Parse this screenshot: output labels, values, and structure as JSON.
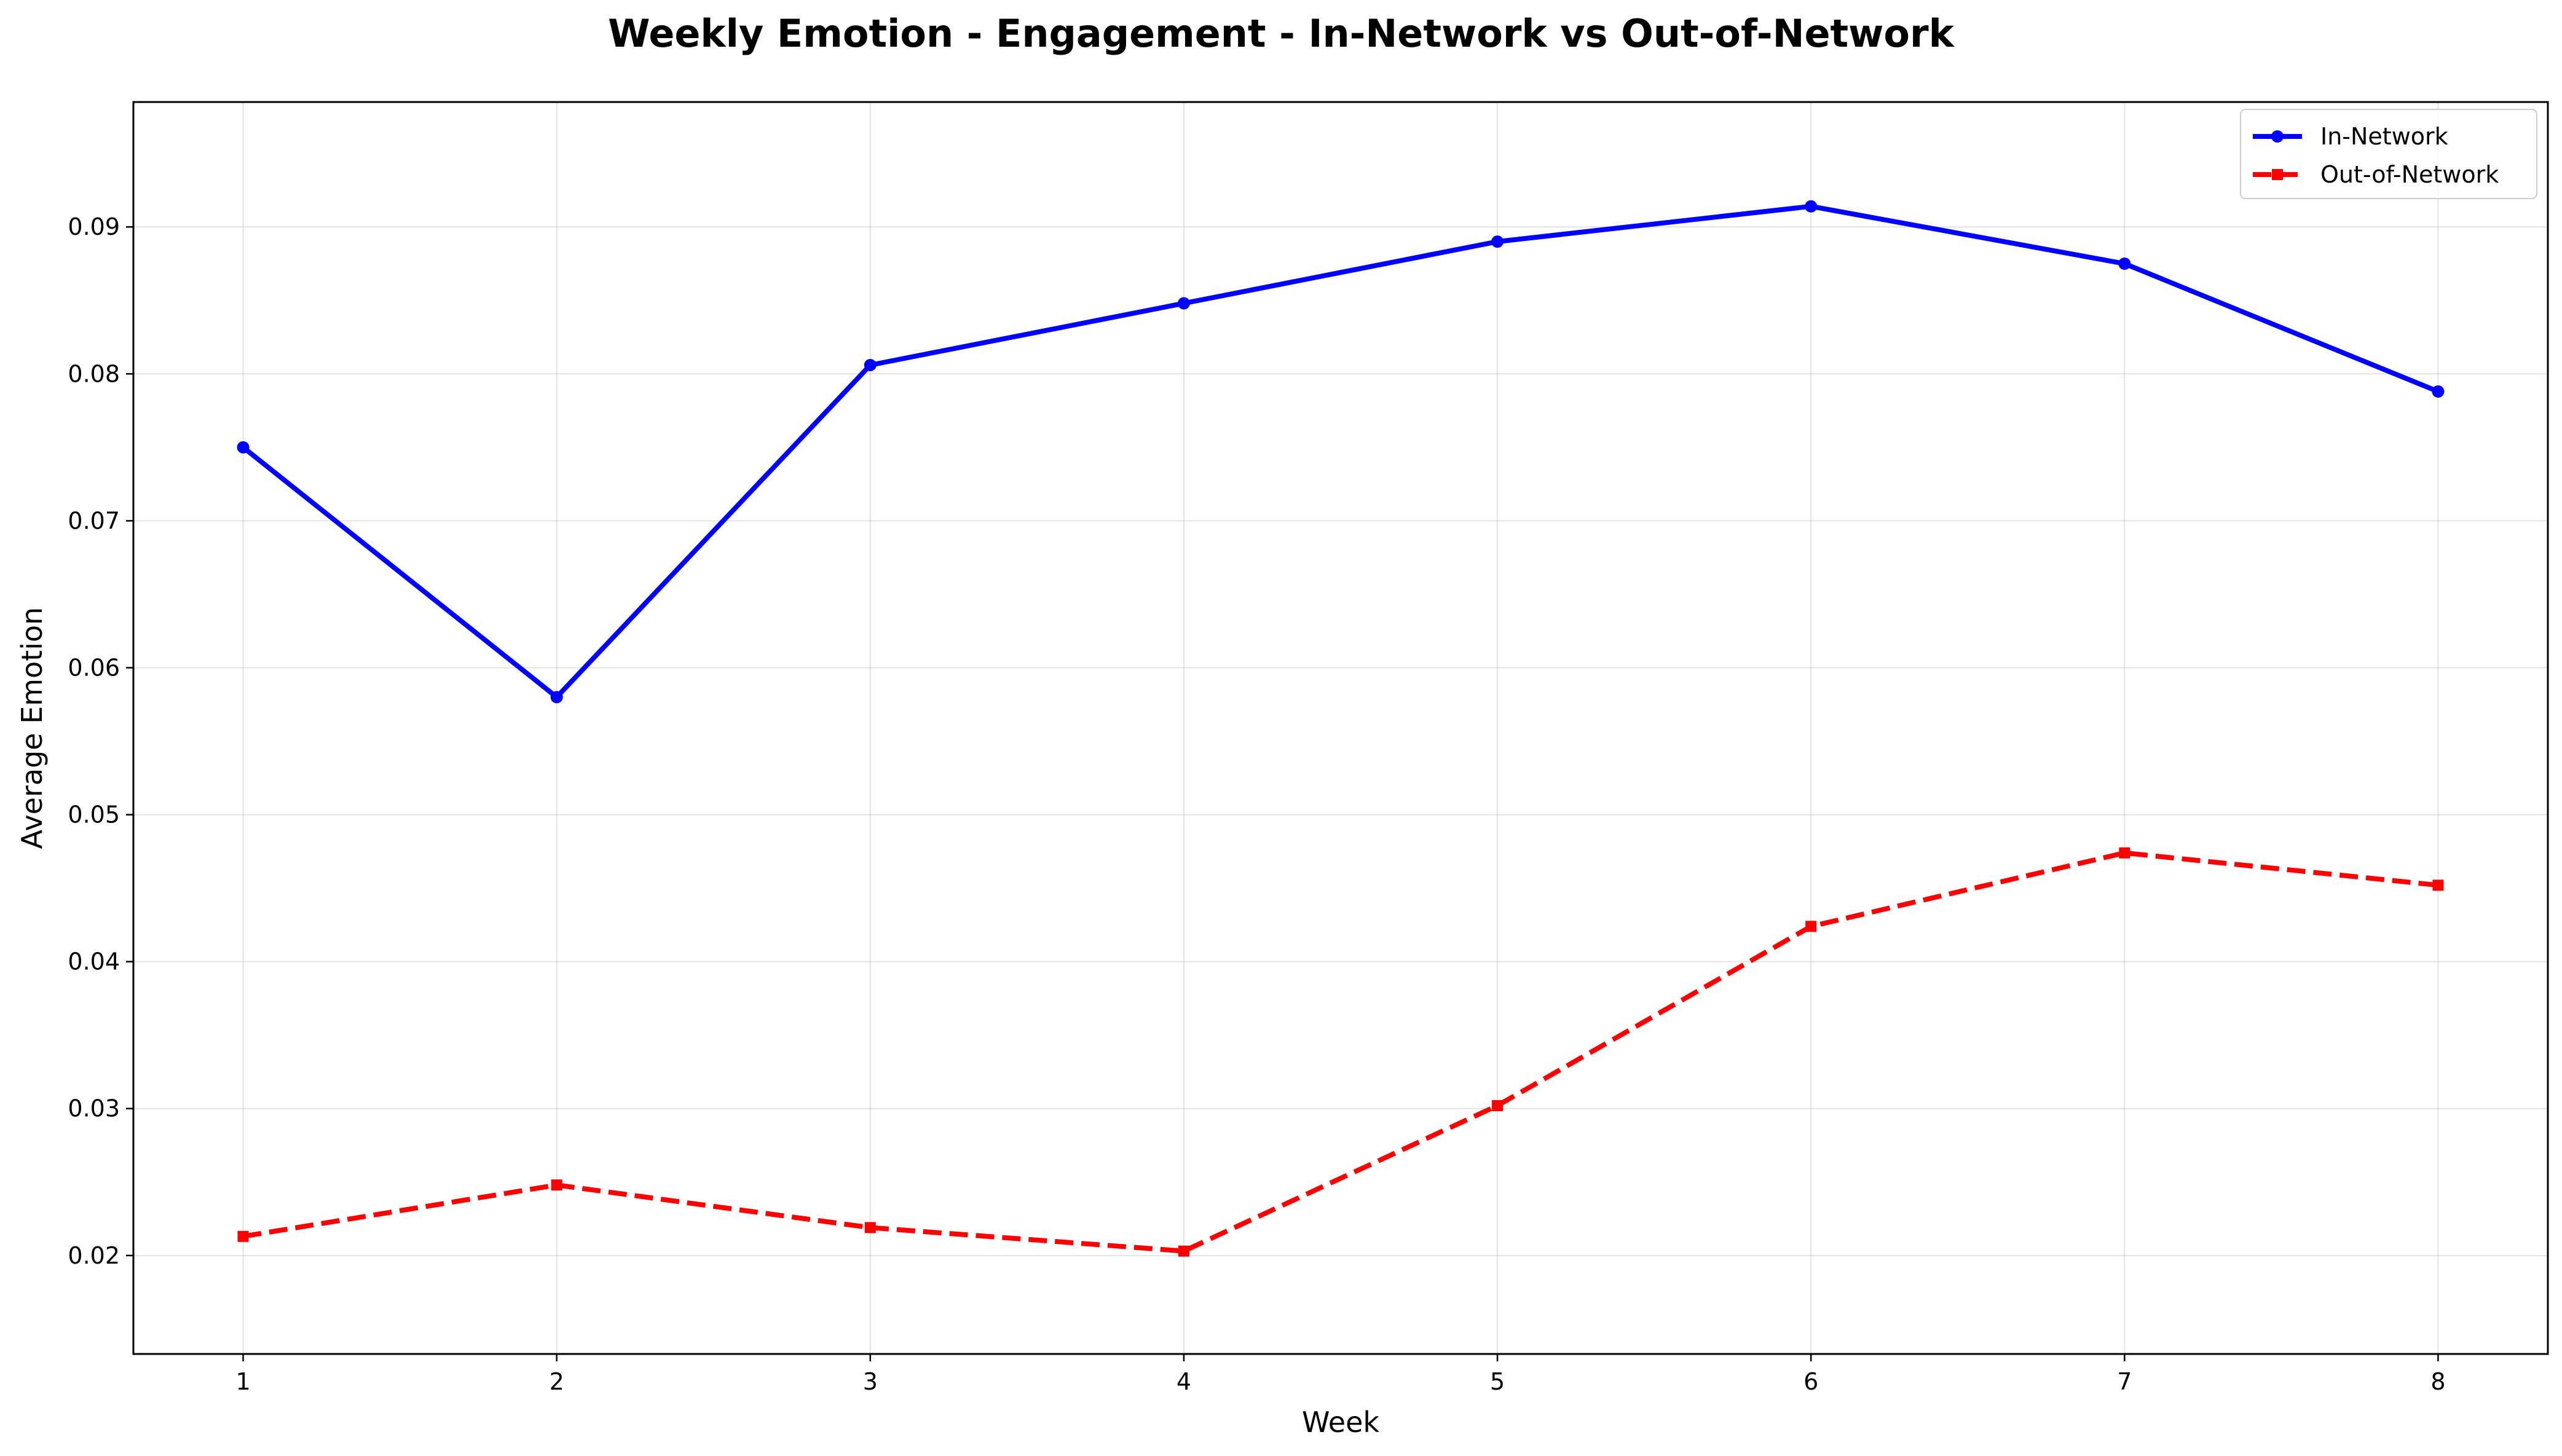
{
  "chart_data": {
    "type": "line",
    "title": "Weekly Emotion - Engagement - In-Network vs Out-of-Network",
    "xlabel": "Week",
    "ylabel": "Average Emotion",
    "x": [
      1,
      2,
      3,
      4,
      5,
      6,
      7,
      8
    ],
    "xlim": [
      0.65,
      8.35
    ],
    "ylim": [
      0.0133,
      0.0985
    ],
    "xticks": [
      "1",
      "2",
      "3",
      "4",
      "5",
      "6",
      "7",
      "8"
    ],
    "yticks": [
      "0.02",
      "0.03",
      "0.04",
      "0.05",
      "0.06",
      "0.07",
      "0.08",
      "0.09"
    ],
    "ytick_values": [
      0.02,
      0.03,
      0.04,
      0.05,
      0.06,
      0.07,
      0.08,
      0.09
    ],
    "grid": true,
    "legend_position": "top-right",
    "series": [
      {
        "name": "In-Network",
        "color": "#0000ff",
        "line_style": "solid",
        "marker": "circle",
        "values": [
          0.075,
          0.058,
          0.0806,
          0.0848,
          0.089,
          0.0914,
          0.0875,
          0.0788
        ]
      },
      {
        "name": "Out-of-Network",
        "color": "#ff0000",
        "line_style": "dashed",
        "marker": "square",
        "values": [
          0.0213,
          0.0248,
          0.0219,
          0.0203,
          0.0302,
          0.0424,
          0.0474,
          0.0452
        ]
      }
    ]
  }
}
